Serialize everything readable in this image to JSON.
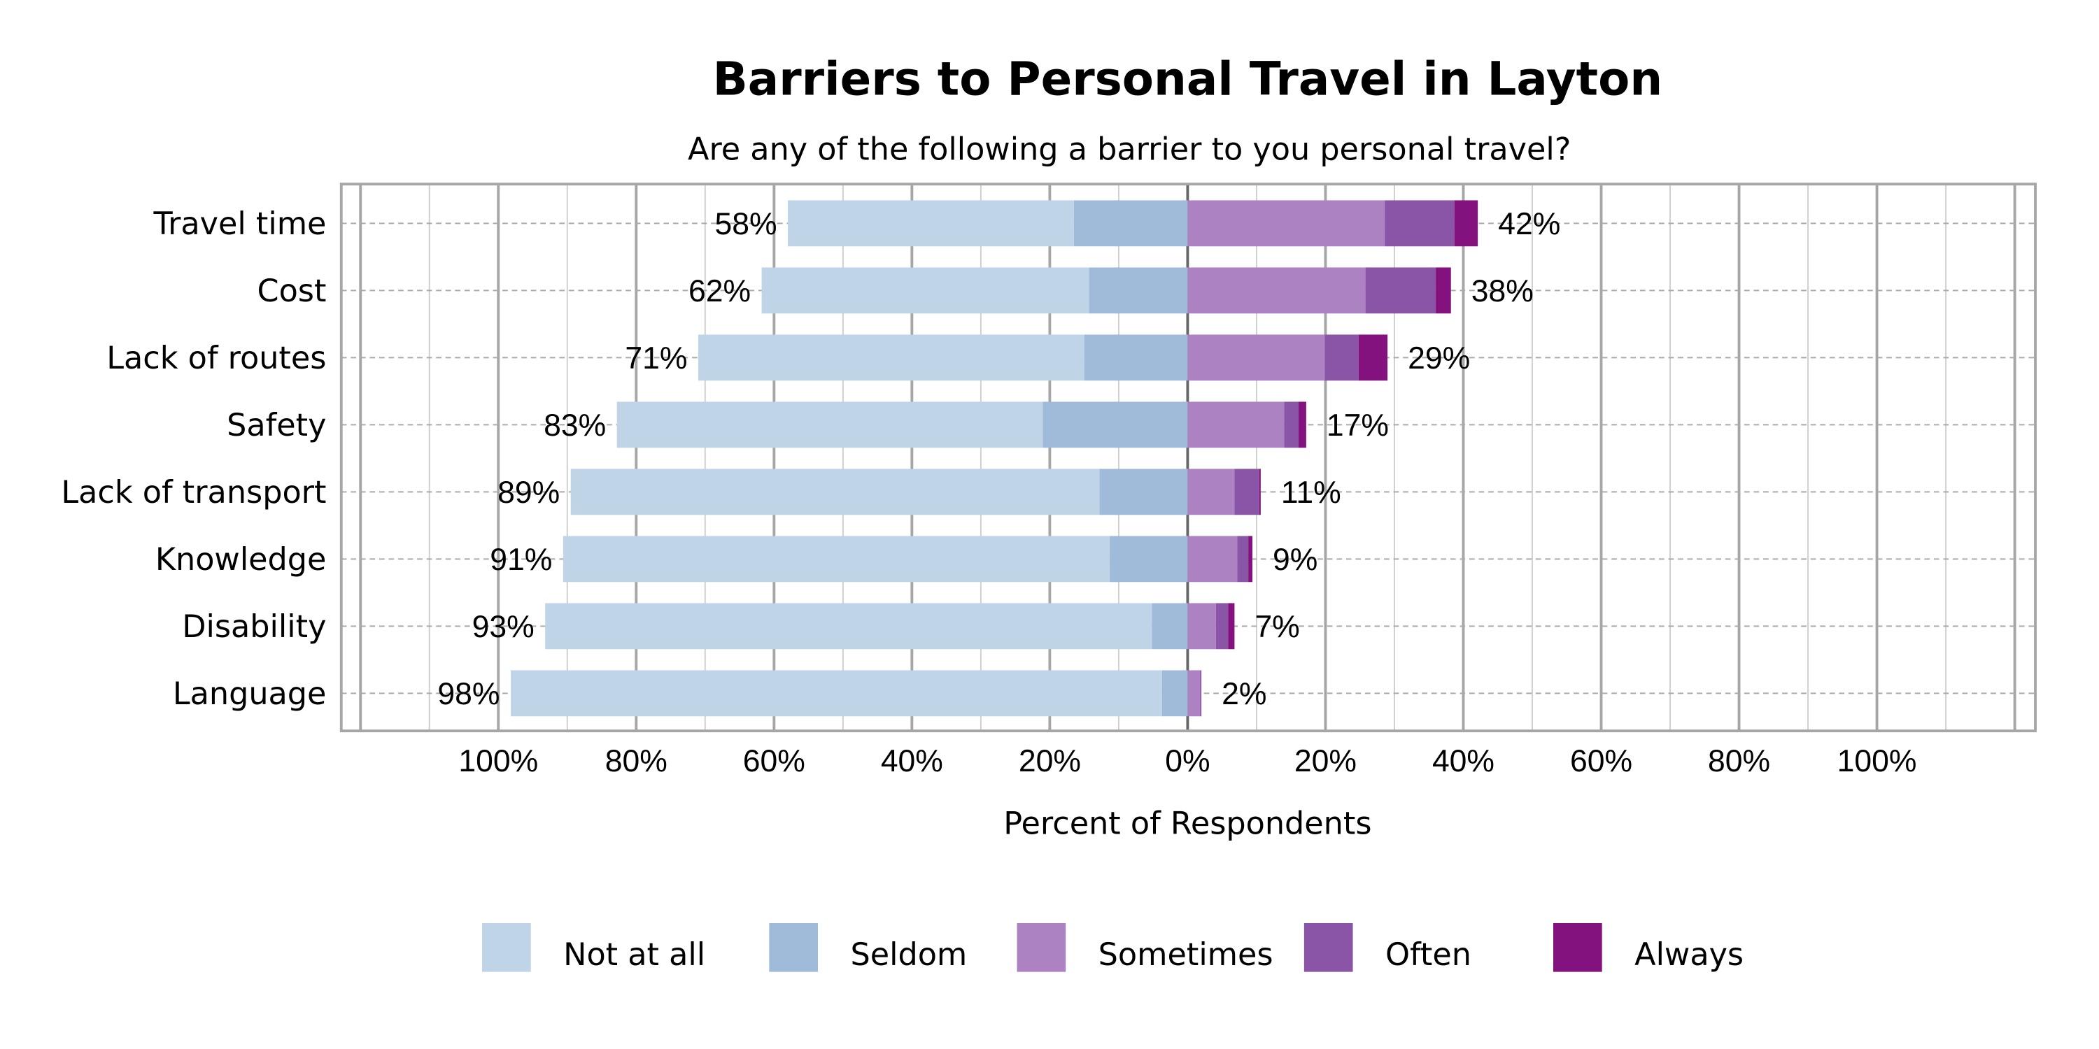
{
  "chart_data": {
    "type": "bar",
    "orientation": "horizontal",
    "stacked": "diverging",
    "title": "Barriers to Personal Travel in Layton",
    "subtitle": "Are any of the following a barrier to you personal travel?",
    "xlabel": "Percent of Respondents",
    "ylabel": "",
    "xlim": [
      -123,
      123
    ],
    "x_ticks": [
      "100%",
      "80%",
      "60%",
      "40%",
      "20%",
      "0%",
      "20%",
      "40%",
      "60%",
      "80%",
      "100%"
    ],
    "x_tick_values": [
      -100,
      -80,
      -60,
      -40,
      -20,
      0,
      20,
      40,
      60,
      80,
      100
    ],
    "grid": true,
    "legend_position": "bottom",
    "categories": [
      "Travel time",
      "Cost",
      "Lack of routes",
      "Safety",
      "Lack of transport",
      "Knowledge",
      "Disability",
      "Language"
    ],
    "series": [
      {
        "name": "Not at all",
        "side": "left",
        "color": "#bfd4e7",
        "values": [
          41.5,
          47.5,
          56.0,
          61.8,
          76.7,
          79.3,
          88.0,
          94.5
        ]
      },
      {
        "name": "Seldom",
        "side": "left",
        "color": "#9fbbd9",
        "values": [
          16.5,
          14.3,
          15.0,
          21.0,
          12.8,
          11.3,
          5.2,
          3.7
        ]
      },
      {
        "name": "Sometimes",
        "side": "right",
        "color": "#ac82c2",
        "values": [
          28.6,
          25.8,
          19.9,
          14.0,
          6.8,
          7.2,
          4.1,
          1.8
        ]
      },
      {
        "name": "Often",
        "side": "right",
        "color": "#8a55a6",
        "values": [
          10.1,
          10.2,
          4.9,
          2.1,
          3.6,
          1.6,
          1.8,
          0.2
        ]
      },
      {
        "name": "Always",
        "side": "right",
        "color": "#84127e",
        "values": [
          3.4,
          2.2,
          4.2,
          1.1,
          0.2,
          0.6,
          0.9,
          0.0
        ]
      }
    ],
    "left_totals": [
      "58%",
      "62%",
      "71%",
      "83%",
      "89%",
      "91%",
      "93%",
      "98%"
    ],
    "right_totals": [
      "42%",
      "38%",
      "29%",
      "17%",
      "11%",
      "9%",
      "7%",
      "2%"
    ]
  }
}
